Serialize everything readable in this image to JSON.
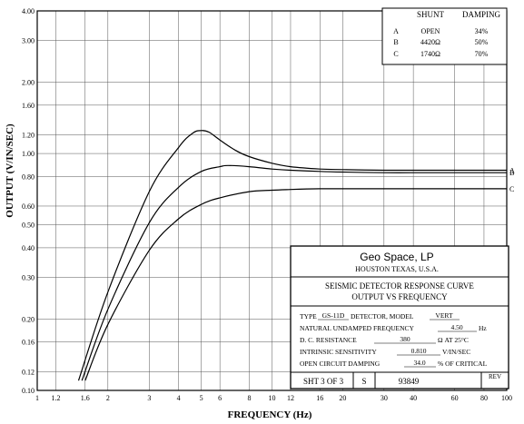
{
  "chart_data": {
    "type": "line",
    "xlabel": "FREQUENCY (Hz)",
    "ylabel": "OUTPUT (V/IN/SEC)",
    "xscale": "log",
    "yscale": "log",
    "xlim": [
      1,
      100
    ],
    "ylim": [
      0.1,
      4.0
    ],
    "grid": true,
    "x_ticks": [
      1,
      1.2,
      1.6,
      2,
      3,
      4,
      5,
      6,
      8,
      10,
      12,
      16,
      20,
      30,
      40,
      60,
      80,
      100
    ],
    "x_tick_labels": [
      "1",
      "1.2",
      "1.6",
      "2",
      "3",
      "4",
      "5",
      "6",
      "8",
      "10",
      "12",
      "16",
      "20",
      "30",
      "40",
      "60",
      "80",
      "100"
    ],
    "y_ticks": [
      0.1,
      0.12,
      0.16,
      0.2,
      0.3,
      0.4,
      0.5,
      0.6,
      0.8,
      1.0,
      1.2,
      1.6,
      2.0,
      3.0,
      4.0
    ],
    "y_tick_labels": [
      "0.10",
      "0.12",
      "0.16",
      "0.20",
      "0.30",
      "0.40",
      "0.50",
      "0.60",
      "0.80",
      "1.00",
      "1.20",
      "1.60",
      "2.00",
      "3.00",
      "4.00"
    ],
    "series": [
      {
        "name": "A",
        "x": [
          1.5,
          2,
          3,
          4,
          4.6,
          5,
          5.4,
          6,
          7,
          8,
          10,
          12,
          16,
          20,
          30,
          40,
          60,
          80,
          100
        ],
        "y": [
          0.11,
          0.26,
          0.69,
          1.06,
          1.22,
          1.25,
          1.23,
          1.14,
          1.03,
          0.97,
          0.91,
          0.88,
          0.86,
          0.855,
          0.85,
          0.85,
          0.85,
          0.85,
          0.85
        ]
      },
      {
        "name": "B",
        "x": [
          1.55,
          2,
          3,
          4,
          5,
          6,
          6.5,
          8,
          10,
          12,
          16,
          20,
          30,
          40,
          60,
          80,
          100
        ],
        "y": [
          0.11,
          0.22,
          0.51,
          0.72,
          0.84,
          0.88,
          0.89,
          0.88,
          0.86,
          0.85,
          0.84,
          0.835,
          0.83,
          0.83,
          0.83,
          0.83,
          0.83
        ]
      },
      {
        "name": "C",
        "x": [
          1.6,
          2,
          3,
          4,
          5,
          6,
          8,
          10,
          12,
          16,
          20,
          30,
          40,
          60,
          80,
          100
        ],
        "y": [
          0.11,
          0.19,
          0.39,
          0.53,
          0.61,
          0.65,
          0.69,
          0.7,
          0.705,
          0.71,
          0.71,
          0.71,
          0.71,
          0.71,
          0.71,
          0.71
        ]
      }
    ],
    "curve_labels": [
      "A",
      "B",
      "C"
    ]
  },
  "shunt_table": {
    "headers": [
      "SHUNT",
      "DAMPING"
    ],
    "rows": [
      {
        "id": "A",
        "shunt": "OPEN",
        "damping": "34%"
      },
      {
        "id": "B",
        "shunt": "4420Ω",
        "damping": "50%"
      },
      {
        "id": "C",
        "shunt": "1740Ω",
        "damping": "70%"
      }
    ]
  },
  "title_block": {
    "company": "Geo Space, LP",
    "location": "HOUSTON TEXAS, U.S.A.",
    "title1": "SEISMIC DETECTOR RESPONSE CURVE",
    "title2": "OUTPUT VS FREQUENCY",
    "type_label": "TYPE",
    "type_value": "GS-11D",
    "detector_label": "DETECTOR, MODEL",
    "model_value": "VERT",
    "freq_label": "NATURAL UNDAMPED FREQUENCY",
    "freq_value": "4.50",
    "freq_unit": "Hz",
    "dcr_label": "D. C. RESISTANCE",
    "dcr_value": "380",
    "dcr_unit": "Ω AT 25°C",
    "sens_label": "INTRINSIC SENSITIVITY",
    "sens_value": "0.810",
    "sens_unit": "V/IN/SEC",
    "damp_label": "OPEN CIRCUIT DAMPING",
    "damp_value": "34.0",
    "damp_unit": "% OF CRITICAL",
    "sheet": "SHT  3 OF  3",
    "size": "S",
    "number": "93849",
    "rev": "REV"
  }
}
